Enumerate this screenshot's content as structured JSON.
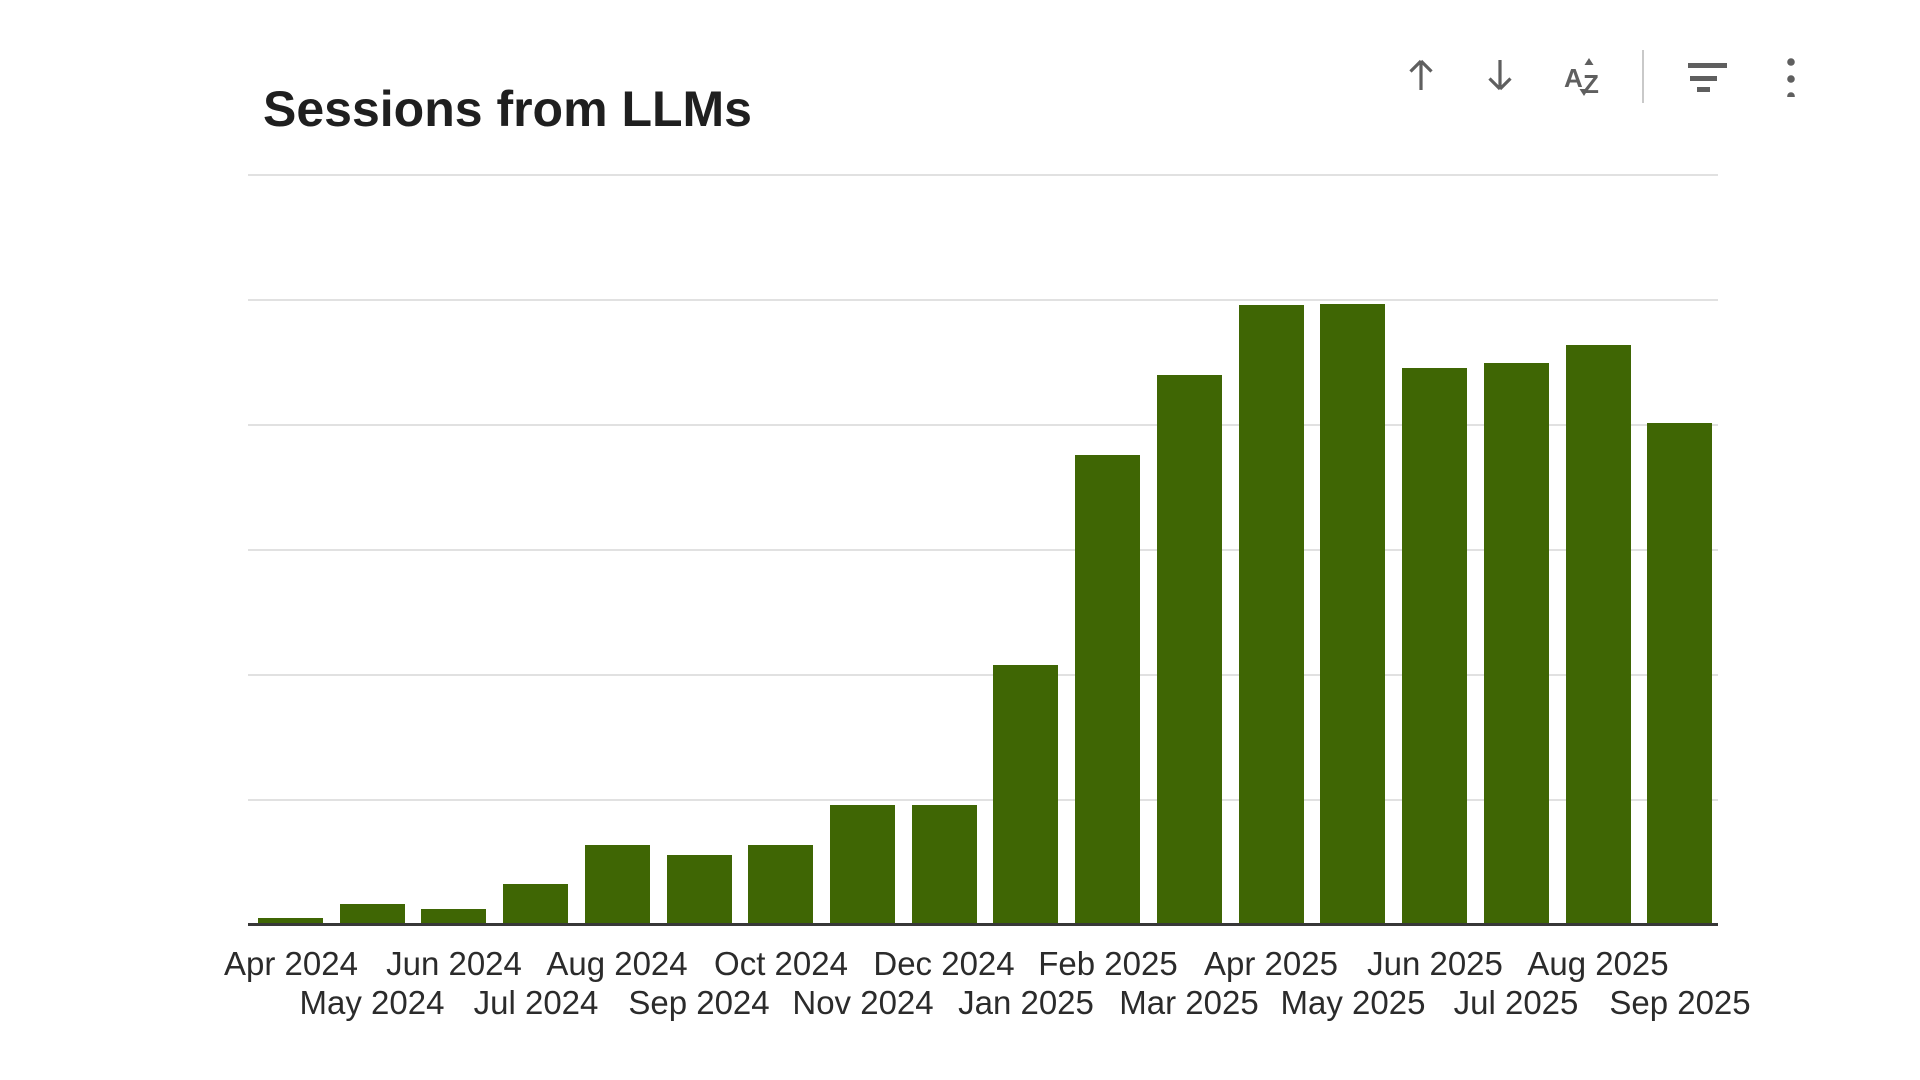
{
  "visual": {
    "title": "Sessions from LLMs",
    "toolbar": {
      "icons": [
        {
          "name": "sort-ascending-icon",
          "label": "Sort ascending"
        },
        {
          "name": "sort-descending-icon",
          "label": "Sort descending"
        },
        {
          "name": "sort-axis-icon",
          "label": "Sort axis (A to Z)"
        },
        {
          "name": "filter-icon",
          "label": "Filters"
        },
        {
          "name": "more-options-icon",
          "label": "More options"
        }
      ]
    }
  },
  "chart_data": {
    "type": "bar",
    "title": "Sessions from LLMs",
    "series_name": "Sessions",
    "categories": [
      "Apr 2024",
      "May 2024",
      "Jun 2024",
      "Jul 2024",
      "Aug 2024",
      "Sep 2024",
      "Oct 2024",
      "Nov 2024",
      "Dec 2024",
      "Jan 2025",
      "Feb 2025",
      "Mar 2025",
      "Apr 2025",
      "May 2025",
      "Jun 2025",
      "Jul 2025",
      "Aug 2025",
      "Sep 2025"
    ],
    "values": [
      0.04,
      0.15,
      0.11,
      0.31,
      0.62,
      0.54,
      0.62,
      0.94,
      0.94,
      2.06,
      3.74,
      4.38,
      4.94,
      4.95,
      4.44,
      4.48,
      4.62,
      4.0
    ],
    "value_units": "relative gridline units (y-axis has no visible tick labels)",
    "xlabel": "",
    "ylabel": "",
    "y_tick_labels_visible": false,
    "ylim": [
      0,
      6
    ],
    "gridlines_at": [
      1,
      2,
      3,
      4,
      5,
      6
    ],
    "grid": "horizontal",
    "x_label_rows": 2,
    "legend": "none",
    "colors": {
      "bar": "#3f6604",
      "gridline": "#e1e1e1",
      "axis_line": "#383838",
      "title": "#1f1f1f",
      "axis_label": "#2b2b2b",
      "icon": "#5f5f5f",
      "divider": "#c9c9c9",
      "background": "#ffffff"
    }
  }
}
